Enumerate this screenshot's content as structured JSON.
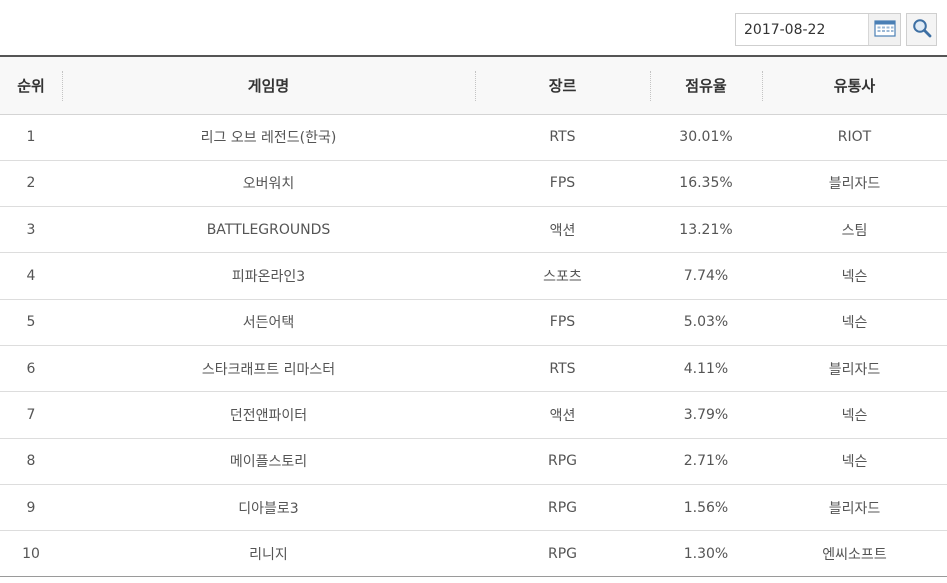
{
  "search": {
    "date_value": "2017-08-22"
  },
  "icons": {
    "calendar": "calendar-icon",
    "search": "search-icon"
  },
  "table": {
    "headers": {
      "rank": "순위",
      "game": "게임명",
      "genre": "장르",
      "share": "점유율",
      "publisher": "유통사"
    },
    "rows": [
      {
        "rank": "1",
        "game": "리그 오브 레전드(한국)",
        "genre": "RTS",
        "share": "30.01%",
        "publisher": "RIOT"
      },
      {
        "rank": "2",
        "game": "오버워치",
        "genre": "FPS",
        "share": "16.35%",
        "publisher": "블리자드"
      },
      {
        "rank": "3",
        "game": "BATTLEGROUNDS",
        "genre": "액션",
        "share": "13.21%",
        "publisher": "스팀"
      },
      {
        "rank": "4",
        "game": "피파온라인3",
        "genre": "스포츠",
        "share": "7.74%",
        "publisher": "넥슨"
      },
      {
        "rank": "5",
        "game": "서든어택",
        "genre": "FPS",
        "share": "5.03%",
        "publisher": "넥슨"
      },
      {
        "rank": "6",
        "game": "스타크래프트 리마스터",
        "genre": "RTS",
        "share": "4.11%",
        "publisher": "블리자드"
      },
      {
        "rank": "7",
        "game": "던전앤파이터",
        "genre": "액션",
        "share": "3.79%",
        "publisher": "넥슨"
      },
      {
        "rank": "8",
        "game": "메이플스토리",
        "genre": "RPG",
        "share": "2.71%",
        "publisher": "넥슨"
      },
      {
        "rank": "9",
        "game": "디아블로3",
        "genre": "RPG",
        "share": "1.56%",
        "publisher": "블리자드"
      },
      {
        "rank": "10",
        "game": "리니지",
        "genre": "RPG",
        "share": "1.30%",
        "publisher": "엔씨소프트"
      }
    ]
  }
}
